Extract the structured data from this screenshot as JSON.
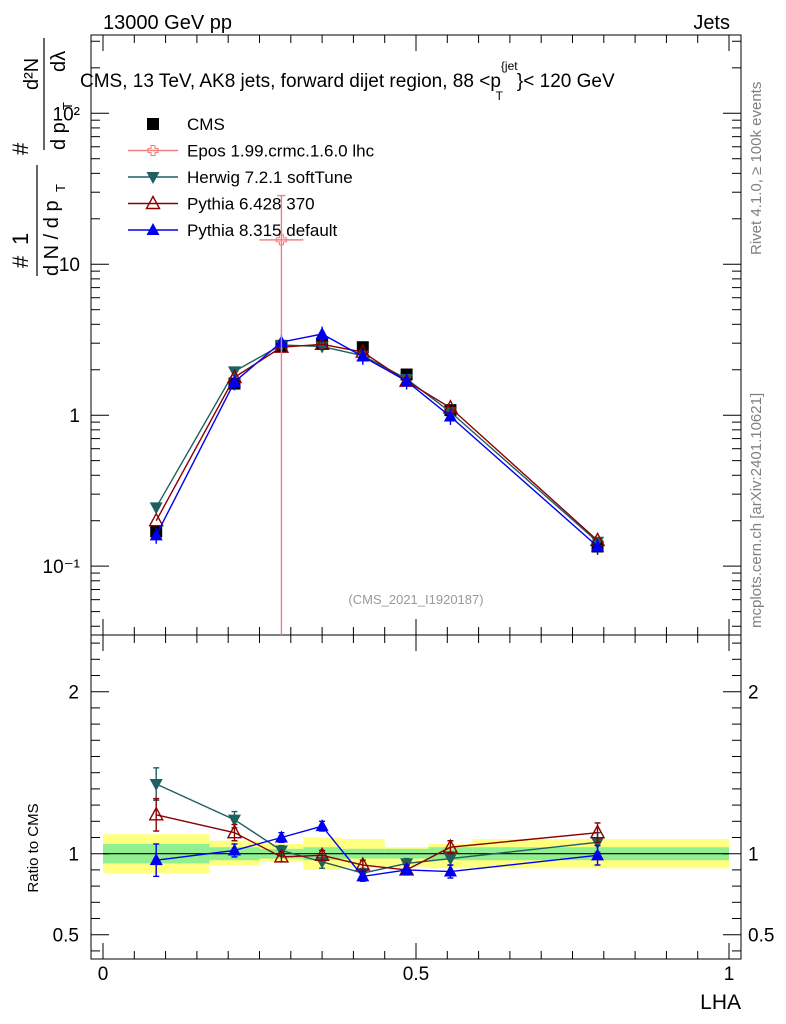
{
  "header": {
    "left": "13000 GeV pp",
    "right": "Jets"
  },
  "title": {
    "prefix": "CMS, 13 TeV, AK8 jets, forward dijet region, 88 <p",
    "sup": "{jet",
    "sub": "T",
    "suffix": "}< 120 GeV"
  },
  "side_labels": {
    "rivet": "Rivet 4.1.0, ≥ 100k events",
    "mcplots": "mcplots.cern.ch [arXiv:2401.10621]"
  },
  "analysis_id": "(CMS_2021_I1920187)",
  "y_axis_label": {
    "hash1": "#",
    "one": "1",
    "dN": "d N / d p",
    "T": "T",
    "hash2": "#",
    "dp": "d p",
    "d2N": "d²N",
    "dlambda": "dλ",
    "full": "# 1 / (d N / d pT) # d²N / (d pT dλ)"
  },
  "ratio_y_label": "Ratio to CMS",
  "x_axis_label": "LHA",
  "legend": [
    {
      "name": "CMS",
      "color": "#000000",
      "marker": "square"
    },
    {
      "name": "Epos 1.99.crmc.1.6.0 lhc",
      "color": "#f08080",
      "marker": "open-cross"
    },
    {
      "name": "Herwig 7.2.1 softTune",
      "color": "#1f5f60",
      "marker": "triangle-down"
    },
    {
      "name": "Pythia 6.428 370",
      "color": "#8b0000",
      "marker": "triangle-open"
    },
    {
      "name": "Pythia 8.315 default",
      "color": "#0000ee",
      "marker": "triangle-up"
    }
  ],
  "chart_data": [
    {
      "type": "line",
      "panel": "main",
      "title": "CMS, 13 TeV, AK8 jets, forward dijet region, 88 < pT jet < 120 GeV",
      "xlabel": "LHA",
      "ylabel": "1/(dN/dpT) d²N/(dpT dλ)",
      "yscale": "log",
      "xlim": [
        -0.02,
        1.02
      ],
      "ylim": [
        0.035,
        330
      ],
      "y_tick_labels": [
        "10⁻¹",
        "1",
        "10",
        "10²"
      ],
      "y_tick_values": [
        0.1,
        1,
        10,
        100
      ],
      "series": [
        {
          "name": "CMS",
          "x": [
            0.085,
            0.21,
            0.285,
            0.35,
            0.415,
            0.485,
            0.555,
            0.79
          ],
          "values": [
            0.17,
            1.62,
            2.88,
            2.98,
            2.82,
            1.86,
            1.08,
            0.135
          ]
        },
        {
          "name": "Epos 1.99.crmc.1.6.0 lhc",
          "x": [
            0.285
          ],
          "values": [
            14.5
          ],
          "xerr": [
            0.035
          ],
          "yerr_low": [
            14.5
          ],
          "yerr_high": [
            14.0
          ]
        },
        {
          "name": "Herwig 7.2.1 softTune",
          "x": [
            0.085,
            0.21,
            0.285,
            0.35,
            0.415,
            0.485,
            0.555,
            0.79
          ],
          "values": [
            0.245,
            1.95,
            2.92,
            2.85,
            2.48,
            1.74,
            1.05,
            0.145
          ]
        },
        {
          "name": "Pythia 6.428 370",
          "x": [
            0.085,
            0.21,
            0.285,
            0.35,
            0.415,
            0.485,
            0.555,
            0.79
          ],
          "values": [
            0.2,
            1.78,
            2.82,
            2.95,
            2.62,
            1.68,
            1.12,
            0.148
          ]
        },
        {
          "name": "Pythia 8.315 default",
          "x": [
            0.085,
            0.21,
            0.285,
            0.35,
            0.415,
            0.485,
            0.555,
            0.79
          ],
          "values": [
            0.16,
            1.66,
            3.05,
            3.45,
            2.45,
            1.68,
            0.98,
            0.135
          ]
        }
      ]
    },
    {
      "type": "line",
      "panel": "ratio",
      "xlabel": "LHA",
      "ylabel": "Ratio to CMS",
      "xlim": [
        -0.02,
        1.02
      ],
      "ylim": [
        0.35,
        2.35
      ],
      "x_tick_labels": [
        "0",
        "0.5",
        "1"
      ],
      "y_tick_labels": [
        "0.5",
        "1",
        "2"
      ],
      "y_tick_values": [
        0.5,
        1,
        2
      ],
      "uncertainty_bands": {
        "edges": [
          0,
          0.17,
          0.25,
          0.32,
          0.38,
          0.45,
          0.52,
          0.59,
          1.0
        ],
        "inner_low": [
          0.94,
          0.96,
          0.97,
          0.96,
          0.97,
          0.97,
          0.96,
          0.96
        ],
        "inner_high": [
          1.06,
          1.04,
          1.03,
          1.04,
          1.03,
          1.03,
          1.04,
          1.04
        ],
        "outer_low": [
          0.88,
          0.93,
          0.95,
          0.9,
          0.92,
          0.92,
          0.91,
          0.91
        ],
        "outer_high": [
          1.12,
          1.08,
          1.06,
          1.1,
          1.09,
          1.04,
          1.06,
          1.09
        ]
      },
      "series": [
        {
          "name": "Herwig 7.2.1 softTune",
          "x": [
            0.085,
            0.21,
            0.285,
            0.35,
            0.415,
            0.485,
            0.555,
            0.79
          ],
          "values": [
            1.43,
            1.21,
            1.02,
            0.95,
            0.88,
            0.94,
            0.97,
            1.07
          ],
          "err": [
            0.1,
            0.05,
            0.03,
            0.04,
            0.03,
            0.03,
            0.04,
            0.06
          ]
        },
        {
          "name": "Pythia 6.428 370",
          "x": [
            0.085,
            0.21,
            0.285,
            0.35,
            0.415,
            0.485,
            0.555,
            0.79
          ],
          "values": [
            1.24,
            1.13,
            0.98,
            0.99,
            0.93,
            0.9,
            1.04,
            1.13
          ],
          "err": [
            0.1,
            0.05,
            0.03,
            0.03,
            0.03,
            0.03,
            0.04,
            0.06
          ]
        },
        {
          "name": "Pythia 8.315 default",
          "x": [
            0.085,
            0.21,
            0.285,
            0.35,
            0.415,
            0.485,
            0.555,
            0.79
          ],
          "values": [
            0.96,
            1.02,
            1.1,
            1.17,
            0.86,
            0.9,
            0.89,
            0.99
          ],
          "err": [
            0.1,
            0.04,
            0.03,
            0.03,
            0.03,
            0.03,
            0.04,
            0.06
          ]
        }
      ]
    }
  ]
}
